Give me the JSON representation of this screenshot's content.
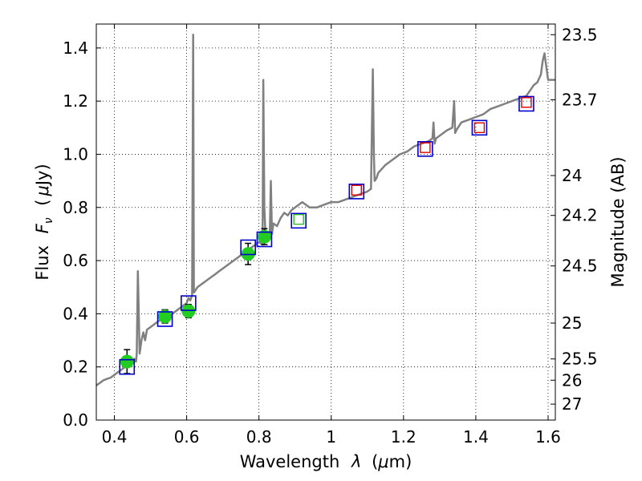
{
  "chart_data": {
    "type": "scatter",
    "title": "",
    "xlabel_pre": "Wavelength",
    "xlabel_lambda": "λ",
    "xlabel_unit_open": "(",
    "xlabel_mu": "μ",
    "xlabel_unit_close": "m)",
    "ylabel_pre": "Flux",
    "ylabel_F": "F",
    "ylabel_nu": "ν",
    "ylabel_unit_open": "(",
    "ylabel_mu": "μ",
    "ylabel_unit_close": "Jy)",
    "y2label": "Magnitude (AB)",
    "xlim": [
      0.35,
      1.62
    ],
    "ylim": [
      0.0,
      1.49
    ],
    "grid": true,
    "xticks": [
      0.4,
      0.6,
      0.8,
      1.0,
      1.2,
      1.4,
      1.6
    ],
    "xtick_labels": [
      "0.4",
      "0.6",
      "0.8",
      "1",
      "1.2",
      "1.4",
      "1.6"
    ],
    "yticks": [
      0.0,
      0.2,
      0.4,
      0.6,
      0.8,
      1.0,
      1.2,
      1.4
    ],
    "ytick_labels": [
      "0.0",
      "0.2",
      "0.4",
      "0.6",
      "0.8",
      "1.0",
      "1.2",
      "1.4"
    ],
    "y2ticks": [
      {
        "flux": 1.45,
        "label": "23.5"
      },
      {
        "flux": 1.205,
        "label": "23.7"
      },
      {
        "flux": 0.92,
        "label": "24"
      },
      {
        "flux": 0.77,
        "label": "24.2"
      },
      {
        "flux": 0.58,
        "label": "24.5"
      },
      {
        "flux": 0.365,
        "label": "25"
      },
      {
        "flux": 0.23,
        "label": "25.5"
      },
      {
        "flux": 0.15,
        "label": "26"
      },
      {
        "flux": 0.06,
        "label": "27"
      }
    ],
    "colors": {
      "model": "#808080",
      "observed": "#22cc22",
      "model_box": "#0000cc",
      "nir_red": "#dd0000",
      "nir_green": "#33bb33",
      "errorbar": "#000000"
    },
    "series": [
      {
        "name": "model spectrum",
        "kind": "line",
        "x": [
          0.35,
          0.36,
          0.37,
          0.38,
          0.39,
          0.4,
          0.41,
          0.42,
          0.43,
          0.44,
          0.45,
          0.455,
          0.46,
          0.462,
          0.465,
          0.47,
          0.475,
          0.48,
          0.485,
          0.49,
          0.5,
          0.51,
          0.52,
          0.53,
          0.54,
          0.55,
          0.56,
          0.57,
          0.58,
          0.59,
          0.6,
          0.605,
          0.61,
          0.615,
          0.618,
          0.62,
          0.625,
          0.63,
          0.64,
          0.65,
          0.66,
          0.67,
          0.68,
          0.69,
          0.7,
          0.72,
          0.74,
          0.76,
          0.78,
          0.8,
          0.81,
          0.812,
          0.815,
          0.818,
          0.82,
          0.83,
          0.833,
          0.836,
          0.84,
          0.85,
          0.86,
          0.87,
          0.88,
          0.89,
          0.9,
          0.92,
          0.94,
          0.96,
          0.98,
          1.0,
          1.02,
          1.04,
          1.06,
          1.08,
          1.1,
          1.11,
          1.115,
          1.118,
          1.12,
          1.125,
          1.13,
          1.15,
          1.17,
          1.19,
          1.21,
          1.23,
          1.25,
          1.27,
          1.28,
          1.283,
          1.286,
          1.29,
          1.3,
          1.32,
          1.335,
          1.34,
          1.343,
          1.346,
          1.36,
          1.38,
          1.4,
          1.42,
          1.44,
          1.46,
          1.48,
          1.5,
          1.52,
          1.54,
          1.55,
          1.56,
          1.57,
          1.58,
          1.585,
          1.59,
          1.595,
          1.6,
          1.62
        ],
        "y": [
          0.13,
          0.14,
          0.15,
          0.155,
          0.16,
          0.17,
          0.18,
          0.19,
          0.2,
          0.21,
          0.22,
          0.23,
          0.22,
          0.25,
          0.56,
          0.25,
          0.3,
          0.33,
          0.3,
          0.34,
          0.35,
          0.36,
          0.37,
          0.38,
          0.37,
          0.39,
          0.4,
          0.41,
          0.42,
          0.43,
          0.44,
          0.46,
          0.45,
          0.47,
          1.45,
          0.48,
          0.49,
          0.5,
          0.51,
          0.52,
          0.53,
          0.54,
          0.55,
          0.56,
          0.57,
          0.59,
          0.61,
          0.63,
          0.65,
          0.67,
          0.66,
          1.28,
          0.8,
          0.7,
          0.68,
          0.7,
          0.9,
          0.7,
          0.74,
          0.73,
          0.76,
          0.78,
          0.77,
          0.79,
          0.8,
          0.82,
          0.8,
          0.8,
          0.81,
          0.82,
          0.82,
          0.83,
          0.84,
          0.85,
          0.86,
          0.87,
          1.32,
          1.0,
          0.9,
          0.91,
          0.93,
          0.96,
          0.98,
          1.0,
          1.01,
          1.03,
          1.04,
          1.05,
          1.06,
          1.12,
          1.04,
          1.06,
          1.07,
          1.09,
          1.1,
          1.2,
          1.08,
          1.09,
          1.12,
          1.13,
          1.14,
          1.15,
          1.17,
          1.18,
          1.19,
          1.2,
          1.21,
          1.22,
          1.24,
          1.26,
          1.27,
          1.3,
          1.35,
          1.38,
          1.33,
          1.28,
          1.28
        ]
      },
      {
        "name": "observed photometry",
        "kind": "points",
        "x": [
          0.435,
          0.54,
          0.605,
          0.77,
          0.815
        ],
        "y": [
          0.22,
          0.39,
          0.41,
          0.625,
          0.69
        ],
        "yerr": [
          0.045,
          0.025,
          0.025,
          0.04,
          0.03
        ]
      },
      {
        "name": "model photometry",
        "kind": "boxes",
        "x": [
          0.435,
          0.54,
          0.605,
          0.77,
          0.815,
          0.91,
          1.07,
          1.26,
          1.41,
          1.54
        ],
        "y": [
          0.2,
          0.38,
          0.44,
          0.65,
          0.68,
          0.75,
          0.86,
          1.02,
          1.1,
          1.19
        ]
      },
      {
        "name": "model photometry nir",
        "kind": "small-boxes",
        "x": [
          0.91,
          1.07,
          1.26,
          1.41,
          1.54
        ],
        "y": [
          0.755,
          0.865,
          1.025,
          1.1,
          1.195
        ],
        "colors": [
          "green",
          "red",
          "red",
          "red",
          "red"
        ]
      }
    ]
  }
}
